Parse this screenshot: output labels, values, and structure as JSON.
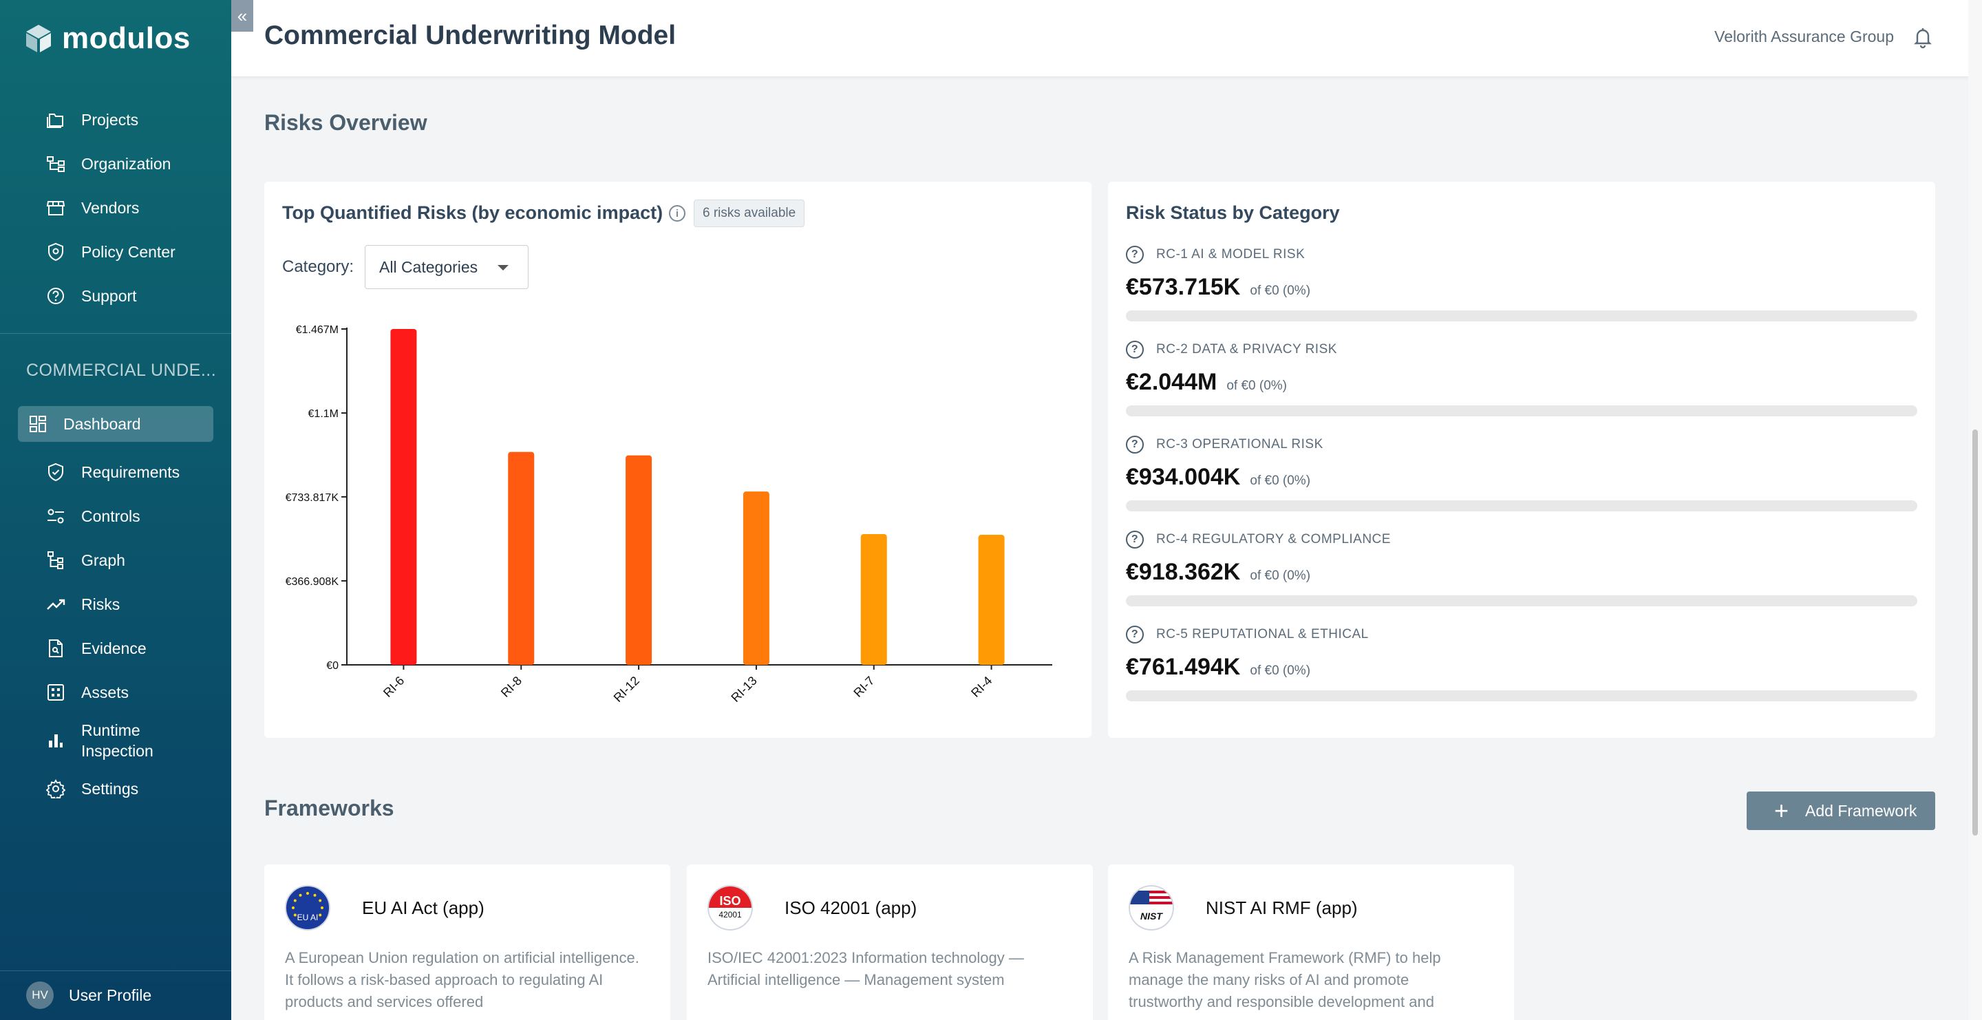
{
  "app": {
    "logo_text": "modulos"
  },
  "header": {
    "title": "Commercial Underwriting Model",
    "org": "Velorith Assurance Group"
  },
  "sidebar": {
    "main_items": [
      {
        "label": "Projects",
        "icon": "folder-icon"
      },
      {
        "label": "Organization",
        "icon": "org-chart-icon"
      },
      {
        "label": "Vendors",
        "icon": "store-icon"
      },
      {
        "label": "Policy Center",
        "icon": "shield-icon"
      },
      {
        "label": "Support",
        "icon": "help-icon"
      }
    ],
    "project_label": "COMMERCIAL UNDE...",
    "project_items": [
      {
        "label": "Dashboard",
        "icon": "dashboard-icon",
        "active": true
      },
      {
        "label": "Requirements",
        "icon": "requirements-icon"
      },
      {
        "label": "Controls",
        "icon": "controls-icon"
      },
      {
        "label": "Graph",
        "icon": "graph-icon"
      },
      {
        "label": "Risks",
        "icon": "trend-icon"
      },
      {
        "label": "Evidence",
        "icon": "document-icon"
      },
      {
        "label": "Assets",
        "icon": "assets-icon"
      },
      {
        "label": "Runtime Inspection",
        "icon": "bar-chart-icon"
      },
      {
        "label": "Settings",
        "icon": "gear-icon"
      }
    ],
    "user": {
      "initials": "HV",
      "label": "User Profile"
    }
  },
  "risks_overview": {
    "title": "Risks Overview",
    "chart_card": {
      "title": "Top Quantified Risks (by economic impact)",
      "badge": "6 risks available",
      "category_label": "Category:",
      "category_value": "All Categories"
    },
    "status_card": {
      "title": "Risk Status by Category",
      "items": [
        {
          "label": "RC-1 AI & MODEL RISK",
          "value": "€573.715K",
          "sub": "of €0 (0%)",
          "progress": 0
        },
        {
          "label": "RC-2 DATA & PRIVACY RISK",
          "value": "€2.044M",
          "sub": "of €0 (0%)",
          "progress": 0
        },
        {
          "label": "RC-3 OPERATIONAL RISK",
          "value": "€934.004K",
          "sub": "of €0 (0%)",
          "progress": 0
        },
        {
          "label": "RC-4 REGULATORY & COMPLIANCE",
          "value": "€918.362K",
          "sub": "of €0 (0%)",
          "progress": 0
        },
        {
          "label": "RC-5 REPUTATIONAL & ETHICAL",
          "value": "€761.494K",
          "sub": "of €0 (0%)",
          "progress": 0
        }
      ]
    }
  },
  "chart_data": {
    "type": "bar",
    "categories": [
      "RI-6",
      "RI-8",
      "RI-12",
      "RI-13",
      "RI-7",
      "RI-4"
    ],
    "values": [
      1467000,
      930000,
      915000,
      757000,
      571000,
      568000
    ],
    "colors": [
      "#ff1a1a",
      "#ff5a0f",
      "#ff5e0c",
      "#ff7a0a",
      "#ff9a05",
      "#ff9a05"
    ],
    "ylim": [
      0,
      1467000
    ],
    "yticks": [
      0,
      366908,
      733817,
      1100000,
      1467000
    ],
    "ytick_labels": [
      "€0",
      "€366.908K",
      "€733.817K",
      "€1.1M",
      "€1.467M"
    ],
    "grid": false
  },
  "frameworks": {
    "title": "Frameworks",
    "add_label": "Add Framework",
    "items": [
      {
        "name": "EU AI Act (app)",
        "logo_text": "EU AI",
        "desc": "A European Union regulation on artificial intelligence. It follows a risk-based approach to regulating AI products and services offered"
      },
      {
        "name": "ISO 42001 (app)",
        "logo_text": "ISO",
        "logo_sub": "42001",
        "desc": "ISO/IEC 42001:2023 Information technology — Artificial intelligence — Management system"
      },
      {
        "name": "NIST AI RMF (app)",
        "logo_text": "NIST",
        "desc": "A Risk Management Framework (RMF) to help manage the many risks of AI and promote trustworthy and responsible development and"
      }
    ]
  }
}
